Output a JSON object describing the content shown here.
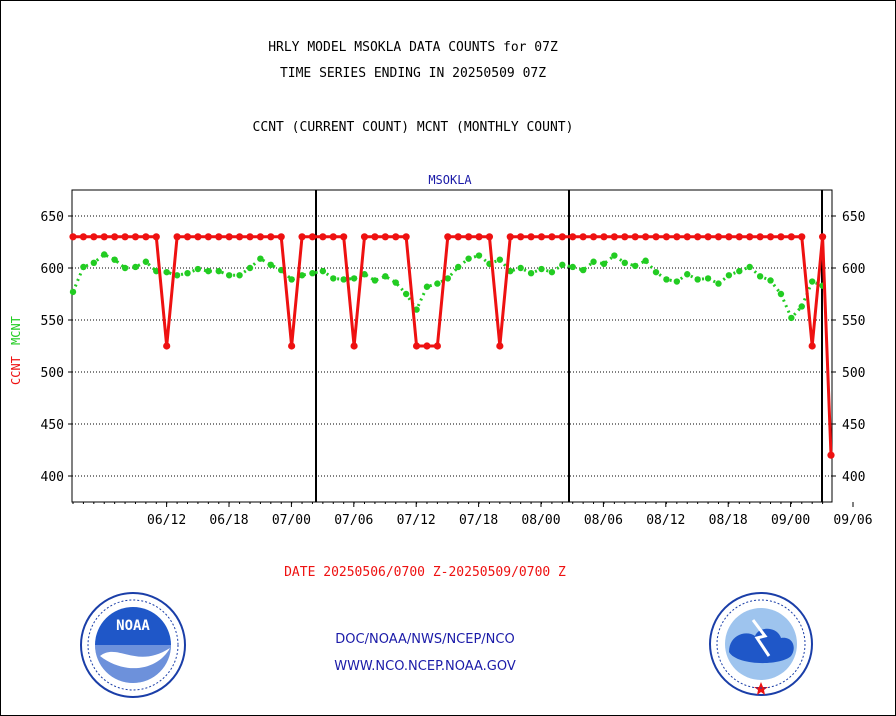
{
  "titles": {
    "line1": "HRLY MODEL MSOKLA DATA COUNTS for 07Z",
    "line2": "TIME SERIES ENDING IN 20250509 07Z",
    "line3": "CCNT (CURRENT COUNT) MCNT (MONTHLY COUNT)"
  },
  "date_range": "DATE 20250506/0700 Z-20250509/0700 Z",
  "footer": {
    "line1": "DOC/NOAA/NWS/NCEP/NCO",
    "line2": "WWW.NCO.NCEP.NOAA.GOV"
  },
  "logos": {
    "left": "noaa-logo",
    "left_text": "NOAA",
    "left_ring": "NATIONAL OCEANIC AND ATMOSPHERIC ADMINISTRATION · U.S. DEPARTMENT OF COMMERCE",
    "right": "nws-logo",
    "right_ring": "NATIONAL WEATHER SERVICE"
  },
  "colors": {
    "ccnt": "#ee1111",
    "mcnt": "#22cc22",
    "plot_label": "#1a1aa8",
    "date_text": "#ee1111"
  },
  "chart_data": {
    "type": "line",
    "plot_label": "MSOKLA",
    "ylabel_ccnt": "CCNT",
    "ylabel_mcnt": "MCNT",
    "ylim": [
      375,
      675
    ],
    "yticks": [
      400,
      450,
      500,
      550,
      600,
      650
    ],
    "xticks": [
      "06/12",
      "06/18",
      "07/00",
      "07/06",
      "07/12",
      "07/18",
      "08/00",
      "08/06",
      "08/12",
      "08/18",
      "09/00",
      "09/06"
    ],
    "grid": true,
    "x_count": 73,
    "series": [
      {
        "name": "CCNT",
        "style": "solid",
        "values": [
          630,
          630,
          630,
          630,
          630,
          630,
          630,
          630,
          630,
          525,
          630,
          630,
          630,
          630,
          630,
          630,
          630,
          630,
          630,
          630,
          630,
          525,
          630,
          630,
          630,
          630,
          630,
          525,
          630,
          630,
          630,
          630,
          630,
          525,
          525,
          525,
          630,
          630,
          630,
          630,
          630,
          525,
          630,
          630,
          630,
          630,
          630,
          630,
          630,
          630,
          630,
          630,
          630,
          630,
          630,
          630,
          630,
          630,
          630,
          630,
          630,
          630,
          630,
          630,
          630,
          630,
          630,
          630,
          630,
          630,
          630,
          525,
          630
        ]
      },
      {
        "name": "MCNT",
        "style": "dotted",
        "values": [
          577,
          601,
          605,
          613,
          608,
          600,
          601,
          606,
          597,
          596,
          593,
          595,
          599,
          597,
          597,
          593,
          593,
          600,
          609,
          603,
          598,
          589,
          593,
          595,
          597,
          590,
          589,
          590,
          594,
          588,
          592,
          586,
          575,
          560,
          582,
          585,
          590,
          601,
          609,
          612,
          604,
          608,
          597,
          600,
          595,
          599,
          596,
          603,
          601,
          598,
          606,
          604,
          612,
          605,
          602,
          607,
          596,
          589,
          587,
          594,
          589,
          590,
          585,
          593,
          597,
          601,
          592,
          588,
          575,
          552,
          563,
          587,
          583
        ]
      }
    ],
    "ccnt_extra": [
      {
        "x_label": "09/06 end",
        "value": 420
      }
    ]
  }
}
